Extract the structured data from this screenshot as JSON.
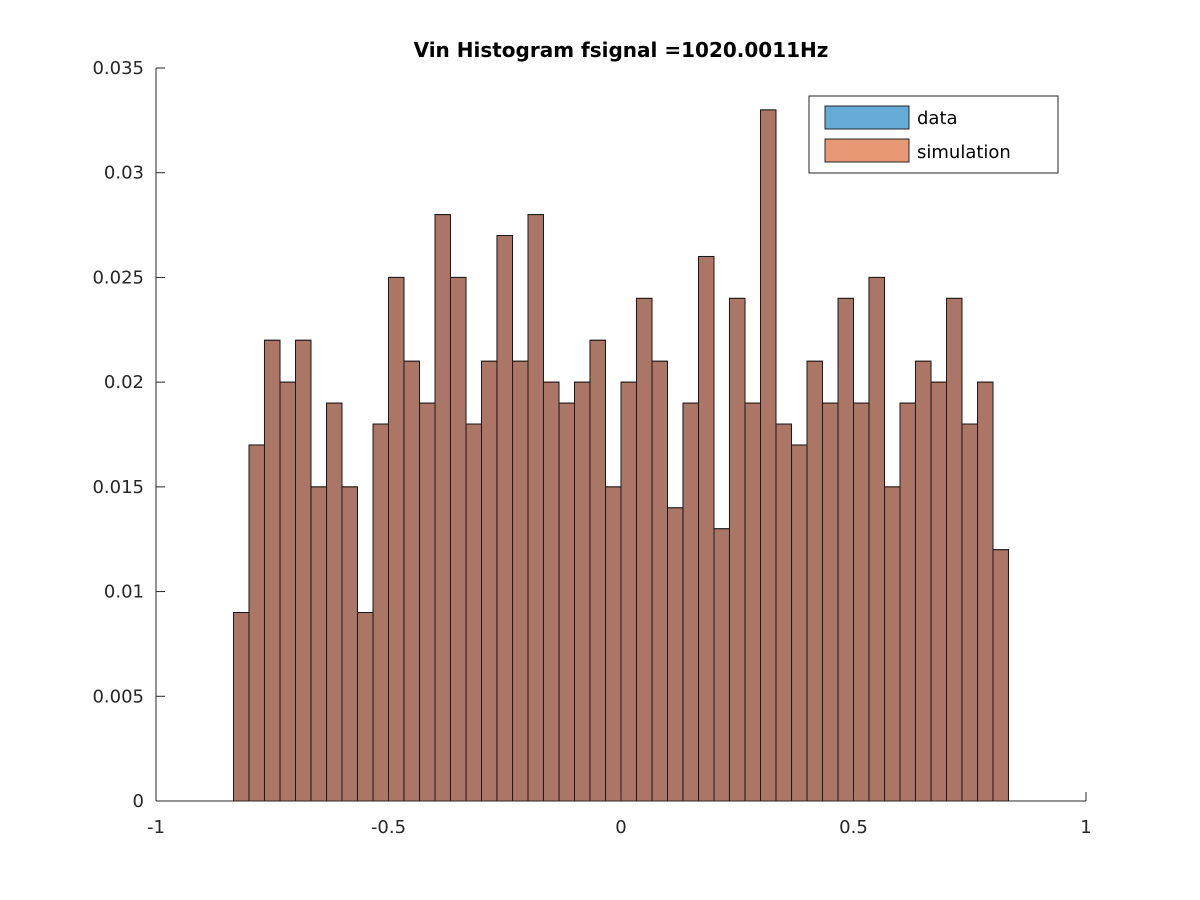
{
  "chart_data": {
    "type": "bar",
    "title": "Vin Histogram fsignal =1020.0011Hz",
    "xlim": [
      -1,
      1
    ],
    "ylim": [
      0,
      0.035
    ],
    "x_ticks": [
      -1,
      -0.5,
      0,
      0.5,
      1
    ],
    "x_tick_labels": [
      "-1",
      "-0.5",
      "0",
      "0.5",
      "1"
    ],
    "y_ticks": [
      0,
      0.005,
      0.01,
      0.015,
      0.02,
      0.025,
      0.03,
      0.035
    ],
    "y_tick_labels": [
      "0",
      "0.005",
      "0.01",
      "0.015",
      "0.02",
      "0.025",
      "0.03",
      "0.035"
    ],
    "grid": false,
    "legend_position": "top-right",
    "bin_edges": [
      -0.8333,
      -0.8,
      -0.7667,
      -0.7333,
      -0.7,
      -0.6667,
      -0.6333,
      -0.6,
      -0.5667,
      -0.5333,
      -0.5,
      -0.4667,
      -0.4333,
      -0.4,
      -0.3667,
      -0.3333,
      -0.3,
      -0.2667,
      -0.2333,
      -0.2,
      -0.1667,
      -0.1333,
      -0.1,
      -0.0667,
      -0.0333,
      0.0,
      0.0333,
      0.0667,
      0.1,
      0.1333,
      0.1667,
      0.2,
      0.2333,
      0.2667,
      0.3,
      0.3333,
      0.3667,
      0.4,
      0.4333,
      0.4667,
      0.5,
      0.5333,
      0.5667,
      0.6,
      0.6333,
      0.6667,
      0.7,
      0.7333,
      0.7667,
      0.8,
      0.8333
    ],
    "series": [
      {
        "name": "data",
        "color": "#0072BD",
        "alpha": 0.6,
        "values": [
          0.009,
          0.017,
          0.022,
          0.02,
          0.022,
          0.015,
          0.019,
          0.015,
          0.009,
          0.018,
          0.025,
          0.021,
          0.019,
          0.028,
          0.025,
          0.018,
          0.021,
          0.027,
          0.021,
          0.028,
          0.02,
          0.019,
          0.02,
          0.022,
          0.015,
          0.02,
          0.024,
          0.021,
          0.014,
          0.019,
          0.026,
          0.013,
          0.024,
          0.019,
          0.033,
          0.018,
          0.017,
          0.021,
          0.019,
          0.024,
          0.019,
          0.025,
          0.015,
          0.019,
          0.021,
          0.02,
          0.024,
          0.018,
          0.02,
          0.012
        ]
      },
      {
        "name": "simulation",
        "color": "#D95319",
        "alpha": 0.6,
        "values": [
          0.009,
          0.017,
          0.022,
          0.02,
          0.022,
          0.015,
          0.019,
          0.015,
          0.009,
          0.018,
          0.025,
          0.021,
          0.019,
          0.028,
          0.025,
          0.018,
          0.021,
          0.027,
          0.021,
          0.028,
          0.02,
          0.019,
          0.02,
          0.022,
          0.015,
          0.02,
          0.024,
          0.021,
          0.014,
          0.019,
          0.026,
          0.013,
          0.024,
          0.019,
          0.033,
          0.018,
          0.017,
          0.021,
          0.019,
          0.024,
          0.019,
          0.025,
          0.015,
          0.019,
          0.021,
          0.02,
          0.024,
          0.018,
          0.02,
          0.012
        ]
      }
    ]
  }
}
